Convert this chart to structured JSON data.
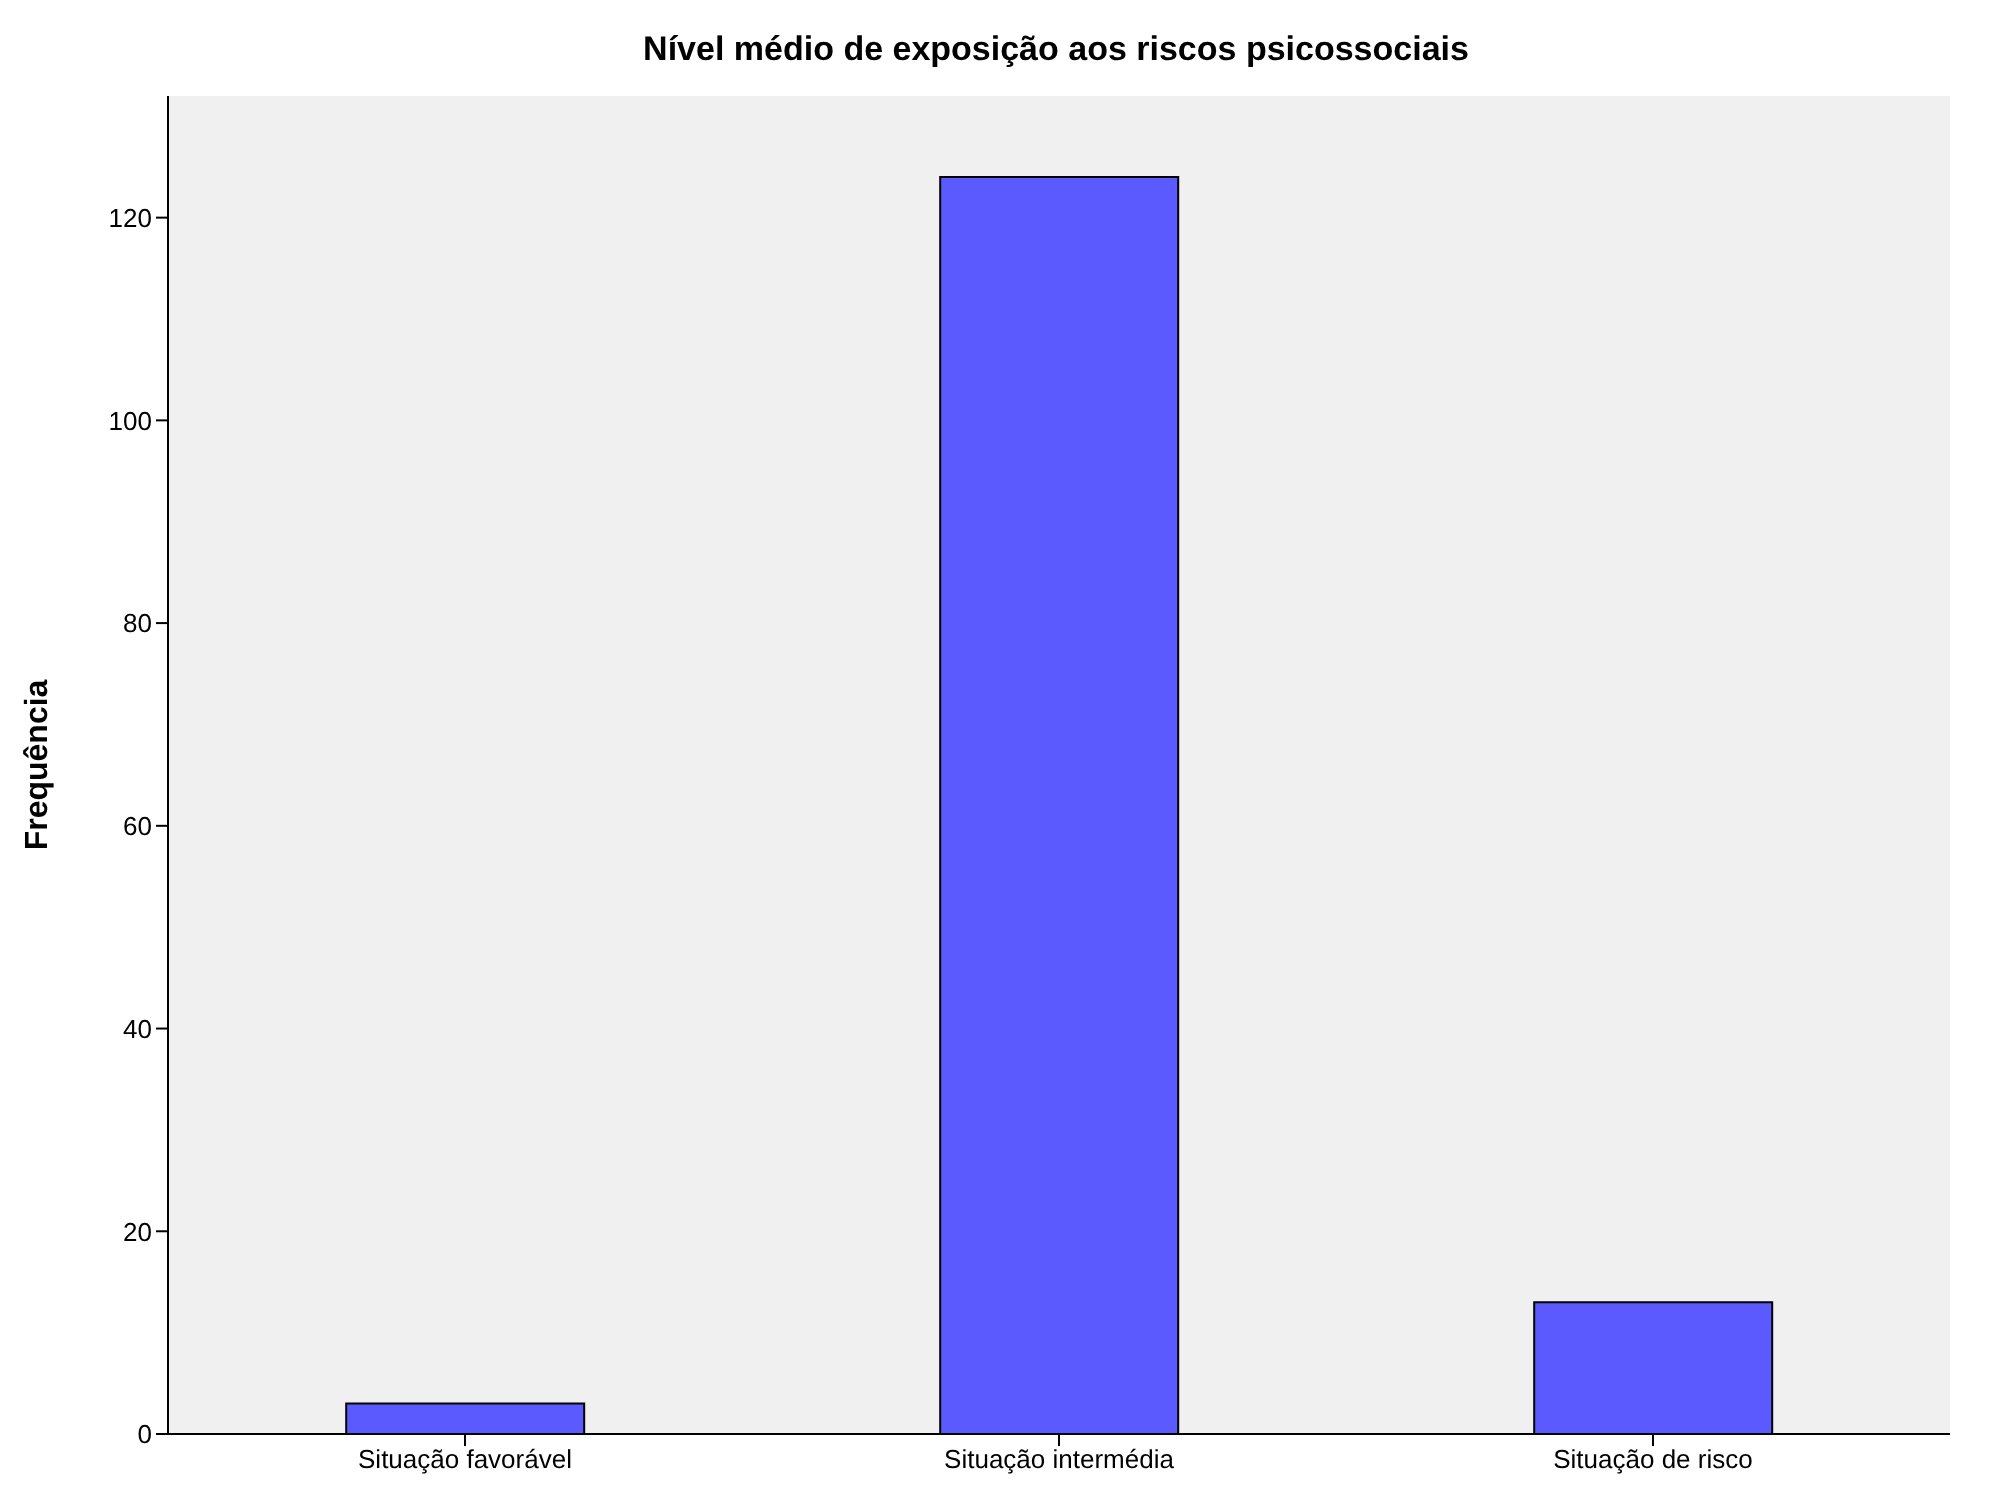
{
  "chart_data": {
    "type": "bar",
    "title": "Nível médio de exposição aos riscos psicossociais",
    "ylabel": "Frequência",
    "categories": [
      "Situação favorável",
      "Situação intermédia",
      "Situação de risco"
    ],
    "values": [
      3,
      124,
      13
    ],
    "color": "#5a5aff",
    "ylim": [
      0,
      132
    ],
    "yticks": [
      0,
      20,
      40,
      60,
      80,
      100,
      120
    ]
  }
}
